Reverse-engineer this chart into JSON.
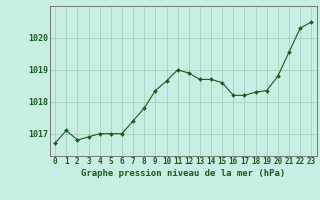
{
  "x": [
    0,
    1,
    2,
    3,
    4,
    5,
    6,
    7,
    8,
    9,
    10,
    11,
    12,
    13,
    14,
    15,
    16,
    17,
    18,
    19,
    20,
    21,
    22,
    23
  ],
  "y": [
    1016.7,
    1017.1,
    1016.8,
    1016.9,
    1017.0,
    1017.0,
    1017.0,
    1017.4,
    1017.8,
    1018.35,
    1018.65,
    1019.0,
    1018.9,
    1018.7,
    1018.7,
    1018.6,
    1018.2,
    1018.2,
    1018.3,
    1018.35,
    1018.8,
    1019.55,
    1020.3,
    1020.5
  ],
  "line_color": "#1a5c1a",
  "marker_color": "#1a5c1a",
  "bg_color": "#c8eee4",
  "grid_color": "#a0c8b8",
  "title": "Graphe pression niveau de la mer (hPa)",
  "title_color": "#1a5c1a",
  "xlabel_ticks": [
    "0",
    "1",
    "2",
    "3",
    "4",
    "5",
    "6",
    "7",
    "8",
    "9",
    "10",
    "11",
    "12",
    "13",
    "14",
    "15",
    "16",
    "17",
    "18",
    "19",
    "20",
    "21",
    "22",
    "23"
  ],
  "yticks": [
    1017,
    1018,
    1019,
    1020
  ],
  "ylim": [
    1016.3,
    1021.0
  ],
  "xlim": [
    -0.5,
    23.5
  ],
  "tick_color": "#1a5c1a",
  "spine_color": "#666666",
  "title_fontsize": 6.5,
  "tick_fontsize": 5.5,
  "ytick_fontsize": 6.0
}
